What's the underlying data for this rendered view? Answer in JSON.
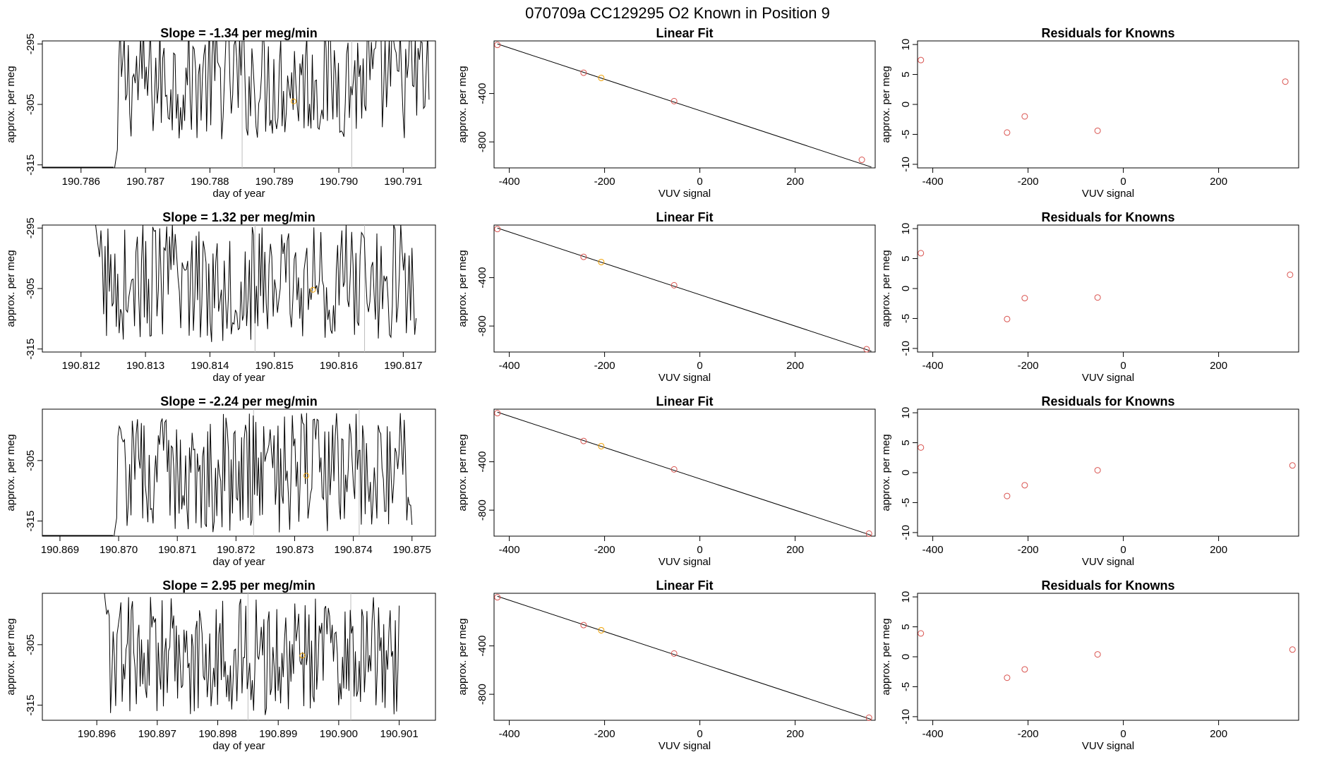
{
  "figure_title": "070709a      CC129295    O2 Known in Position  9",
  "chart_data": [
    {
      "type": "line",
      "panel": "timeseries",
      "row": 1,
      "title": "Slope =  -1.34  per meg/min",
      "xlabel": "day of year",
      "ylabel": "approx. per meg",
      "xlim": [
        190.7854,
        190.7915
      ],
      "ylim": [
        -315.5,
        -294.5
      ],
      "xticks": [
        190.786,
        190.787,
        190.788,
        190.789,
        190.79,
        190.791
      ],
      "xtick_labels": [
        "190.786",
        "190.787",
        "190.788",
        "190.789",
        "190.790",
        "190.791"
      ],
      "yticks": [
        -295,
        -305,
        -315
      ],
      "ytick_labels": [
        "-295",
        "-305",
        "-315"
      ],
      "vlines": [
        190.7885,
        190.7902
      ],
      "highlight_point": {
        "x": 190.7893,
        "y": -304.5
      },
      "line_start": 190.7865,
      "line_end": 190.7914,
      "line_range": [
        -316,
        -301,
        -294
      ]
    },
    {
      "type": "scatter",
      "panel": "linear_fit",
      "row": 1,
      "title": "Linear Fit",
      "xlabel": "VUV signal",
      "ylabel": "approx. per meg",
      "xlim": [
        -432,
        368
      ],
      "ylim": [
        -1015,
        35
      ],
      "xticks": [
        -400,
        -200,
        0,
        200
      ],
      "xtick_labels": [
        "-400",
        "-200",
        "0",
        "200"
      ],
      "yticks": [
        -400,
        -800
      ],
      "ytick_labels": [
        "-400",
        "-800"
      ],
      "fit_line": {
        "x": [
          -425,
          360
        ],
        "y": [
          10,
          -1008
        ]
      },
      "points": [
        {
          "x": -425,
          "y": 2,
          "color": "red"
        },
        {
          "x": -244,
          "y": -228,
          "color": "red"
        },
        {
          "x": -207,
          "y": -271,
          "color": "orange"
        },
        {
          "x": -54,
          "y": -463,
          "color": "red"
        },
        {
          "x": 340,
          "y": -948,
          "color": "red"
        }
      ]
    },
    {
      "type": "scatter",
      "panel": "residuals",
      "row": 1,
      "title": "Residuals for Knowns",
      "xlabel": "VUV signal",
      "ylabel": "approx. per meg",
      "xlim": [
        -432,
        368
      ],
      "ylim": [
        -10.6,
        10.6
      ],
      "xticks": [
        -400,
        -200,
        0,
        200
      ],
      "xtick_labels": [
        "-400",
        "-200",
        "0",
        "200"
      ],
      "yticks": [
        10,
        5,
        0,
        -5,
        -10
      ],
      "ytick_labels": [
        "10",
        "5",
        "0",
        "-5",
        "-10"
      ],
      "points": [
        {
          "x": -425,
          "y": 7.4,
          "color": "red"
        },
        {
          "x": -244,
          "y": -4.7,
          "color": "red"
        },
        {
          "x": -207,
          "y": -2.0,
          "color": "red"
        },
        {
          "x": -54,
          "y": -4.4,
          "color": "red"
        },
        {
          "x": 340,
          "y": 3.8,
          "color": "red"
        }
      ]
    },
    {
      "type": "line",
      "panel": "timeseries",
      "row": 2,
      "title": "Slope =  1.32  per meg/min",
      "xlabel": "day of year",
      "ylabel": "approx. per meg",
      "xlim": [
        190.8114,
        190.8175
      ],
      "ylim": [
        -315.5,
        -294.5
      ],
      "xticks": [
        190.812,
        190.813,
        190.814,
        190.815,
        190.816,
        190.817
      ],
      "xtick_labels": [
        "190.812",
        "190.813",
        "190.814",
        "190.815",
        "190.816",
        "190.817"
      ],
      "yticks": [
        -295,
        -305,
        -315
      ],
      "ytick_labels": [
        "-295",
        "-305",
        "-315"
      ],
      "vlines": [
        190.8147,
        190.8164
      ],
      "highlight_point": {
        "x": 190.8156,
        "y": -305.2
      },
      "line_start": 190.8122,
      "line_end": 190.8172,
      "line_range": [
        -316,
        -304,
        -294
      ]
    },
    {
      "type": "scatter",
      "panel": "linear_fit",
      "row": 2,
      "title": "Linear Fit",
      "xlabel": "VUV signal",
      "ylabel": "approx. per meg",
      "xlim": [
        -432,
        368
      ],
      "ylim": [
        -1015,
        35
      ],
      "xticks": [
        -400,
        -200,
        0,
        200
      ],
      "xtick_labels": [
        "-400",
        "-200",
        "0",
        "200"
      ],
      "yticks": [
        -400,
        -800
      ],
      "ytick_labels": [
        "-400",
        "-800"
      ],
      "fit_line": {
        "x": [
          -425,
          360
        ],
        "y": [
          10,
          -1008
        ]
      },
      "points": [
        {
          "x": -425,
          "y": 2,
          "color": "red"
        },
        {
          "x": -244,
          "y": -228,
          "color": "red"
        },
        {
          "x": -207,
          "y": -271,
          "color": "orange"
        },
        {
          "x": -54,
          "y": -463,
          "color": "red"
        },
        {
          "x": 350,
          "y": -992,
          "color": "red"
        }
      ]
    },
    {
      "type": "scatter",
      "panel": "residuals",
      "row": 2,
      "title": "Residuals for Knowns",
      "xlabel": "VUV signal",
      "ylabel": "approx. per meg",
      "xlim": [
        -432,
        368
      ],
      "ylim": [
        -10.6,
        10.6
      ],
      "xticks": [
        -400,
        -200,
        0,
        200
      ],
      "xtick_labels": [
        "-400",
        "-200",
        "0",
        "200"
      ],
      "yticks": [
        10,
        5,
        0,
        -5,
        -10
      ],
      "ytick_labels": [
        "10",
        "5",
        "0",
        "-5",
        "-10"
      ],
      "points": [
        {
          "x": -425,
          "y": 5.9,
          "color": "red"
        },
        {
          "x": -244,
          "y": -5.1,
          "color": "red"
        },
        {
          "x": -207,
          "y": -1.6,
          "color": "red"
        },
        {
          "x": -54,
          "y": -1.5,
          "color": "red"
        },
        {
          "x": 350,
          "y": 2.3,
          "color": "red"
        }
      ]
    },
    {
      "type": "line",
      "panel": "timeseries",
      "row": 3,
      "title": "Slope =  -2.24  per meg/min",
      "xlabel": "day of year",
      "ylabel": "approx. per meg",
      "xlim": [
        190.8687,
        190.8754
      ],
      "ylim": [
        -317.5,
        -296.5
      ],
      "xticks": [
        190.869,
        190.87,
        190.871,
        190.872,
        190.873,
        190.874,
        190.875
      ],
      "xtick_labels": [
        "190.869",
        "190.870",
        "190.871",
        "190.872",
        "190.873",
        "190.874",
        "190.875"
      ],
      "yticks": [
        -305,
        -315
      ],
      "ytick_labels": [
        "-305",
        "-315"
      ],
      "vlines": [
        190.8723,
        190.8741
      ],
      "highlight_point": {
        "x": 190.8732,
        "y": -307.5
      },
      "line_start": 190.8699,
      "line_end": 190.875,
      "line_range": [
        -318,
        -307,
        -296
      ]
    },
    {
      "type": "scatter",
      "panel": "linear_fit",
      "row": 3,
      "title": "Linear Fit",
      "xlabel": "VUV signal",
      "ylabel": "approx. per meg",
      "xlim": [
        -432,
        368
      ],
      "ylim": [
        -1015,
        35
      ],
      "xticks": [
        -400,
        -200,
        0,
        200
      ],
      "xtick_labels": [
        "-400",
        "-200",
        "0",
        "200"
      ],
      "yticks": [
        -400,
        -800
      ],
      "ytick_labels": [
        "-400",
        "-800"
      ],
      "fit_line": {
        "x": [
          -425,
          360
        ],
        "y": [
          10,
          -1008
        ]
      },
      "points": [
        {
          "x": -425,
          "y": 2,
          "color": "red"
        },
        {
          "x": -244,
          "y": -228,
          "color": "red"
        },
        {
          "x": -207,
          "y": -271,
          "color": "orange"
        },
        {
          "x": -54,
          "y": -463,
          "color": "red"
        },
        {
          "x": 355,
          "y": -994,
          "color": "red"
        }
      ]
    },
    {
      "type": "scatter",
      "panel": "residuals",
      "row": 3,
      "title": "Residuals for Knowns",
      "xlabel": "VUV signal",
      "ylabel": "approx. per meg",
      "xlim": [
        -432,
        368
      ],
      "ylim": [
        -10.6,
        10.6
      ],
      "xticks": [
        -400,
        -200,
        0,
        200
      ],
      "xtick_labels": [
        "-400",
        "-200",
        "0",
        "200"
      ],
      "yticks": [
        10,
        5,
        0,
        -5,
        -10
      ],
      "ytick_labels": [
        "10",
        "5",
        "0",
        "-5",
        "-10"
      ],
      "points": [
        {
          "x": -425,
          "y": 4.2,
          "color": "red"
        },
        {
          "x": -244,
          "y": -3.9,
          "color": "red"
        },
        {
          "x": -207,
          "y": -2.1,
          "color": "red"
        },
        {
          "x": -54,
          "y": 0.4,
          "color": "red"
        },
        {
          "x": 355,
          "y": 1.2,
          "color": "red"
        }
      ]
    },
    {
      "type": "line",
      "panel": "timeseries",
      "row": 4,
      "title": "Slope =  2.95  per meg/min",
      "xlabel": "day of year",
      "ylabel": "approx. per meg",
      "xlim": [
        190.8951,
        190.9016
      ],
      "ylim": [
        -317.5,
        -296.5
      ],
      "xticks": [
        190.896,
        190.897,
        190.898,
        190.899,
        190.9,
        190.901
      ],
      "xtick_labels": [
        "190.896",
        "190.897",
        "190.898",
        "190.899",
        "190.900",
        "190.901"
      ],
      "yticks": [
        -305,
        -315
      ],
      "ytick_labels": [
        "-305",
        "-315"
      ],
      "vlines": [
        190.8985,
        190.9002
      ],
      "highlight_point": {
        "x": 190.8994,
        "y": -306.8
      },
      "line_start": 190.8961,
      "line_end": 190.901,
      "line_range": [
        -318,
        -307,
        -296
      ]
    },
    {
      "type": "scatter",
      "panel": "linear_fit",
      "row": 4,
      "title": "Linear Fit",
      "xlabel": "VUV signal",
      "ylabel": "approx. per meg",
      "xlim": [
        -432,
        368
      ],
      "ylim": [
        -1015,
        35
      ],
      "xticks": [
        -400,
        -200,
        0,
        200
      ],
      "xtick_labels": [
        "-400",
        "-200",
        "0",
        "200"
      ],
      "yticks": [
        -400,
        -800
      ],
      "ytick_labels": [
        "-400",
        "-800"
      ],
      "fit_line": {
        "x": [
          -425,
          360
        ],
        "y": [
          10,
          -1008
        ]
      },
      "points": [
        {
          "x": -425,
          "y": 2,
          "color": "red"
        },
        {
          "x": -244,
          "y": -228,
          "color": "red"
        },
        {
          "x": -207,
          "y": -271,
          "color": "orange"
        },
        {
          "x": -54,
          "y": -463,
          "color": "red"
        },
        {
          "x": 355,
          "y": -994,
          "color": "red"
        }
      ]
    },
    {
      "type": "scatter",
      "panel": "residuals",
      "row": 4,
      "title": "Residuals for Knowns",
      "xlabel": "VUV signal",
      "ylabel": "approx. per meg",
      "xlim": [
        -432,
        368
      ],
      "ylim": [
        -10.6,
        10.6
      ],
      "xticks": [
        -400,
        -200,
        0,
        200
      ],
      "xtick_labels": [
        "-400",
        "-200",
        "0",
        "200"
      ],
      "yticks": [
        10,
        5,
        0,
        -5,
        -10
      ],
      "ytick_labels": [
        "10",
        "5",
        "0",
        "-5",
        "-10"
      ],
      "points": [
        {
          "x": -425,
          "y": 3.9,
          "color": "red"
        },
        {
          "x": -244,
          "y": -3.5,
          "color": "red"
        },
        {
          "x": -207,
          "y": -2.1,
          "color": "red"
        },
        {
          "x": -54,
          "y": 0.4,
          "color": "red"
        },
        {
          "x": 355,
          "y": 1.2,
          "color": "red"
        }
      ]
    }
  ],
  "colors": {
    "line": "#000000",
    "frame": "#000000",
    "vline": "#bdbdbd",
    "red_point": "#d9534f",
    "orange_point": "#f0a000"
  }
}
